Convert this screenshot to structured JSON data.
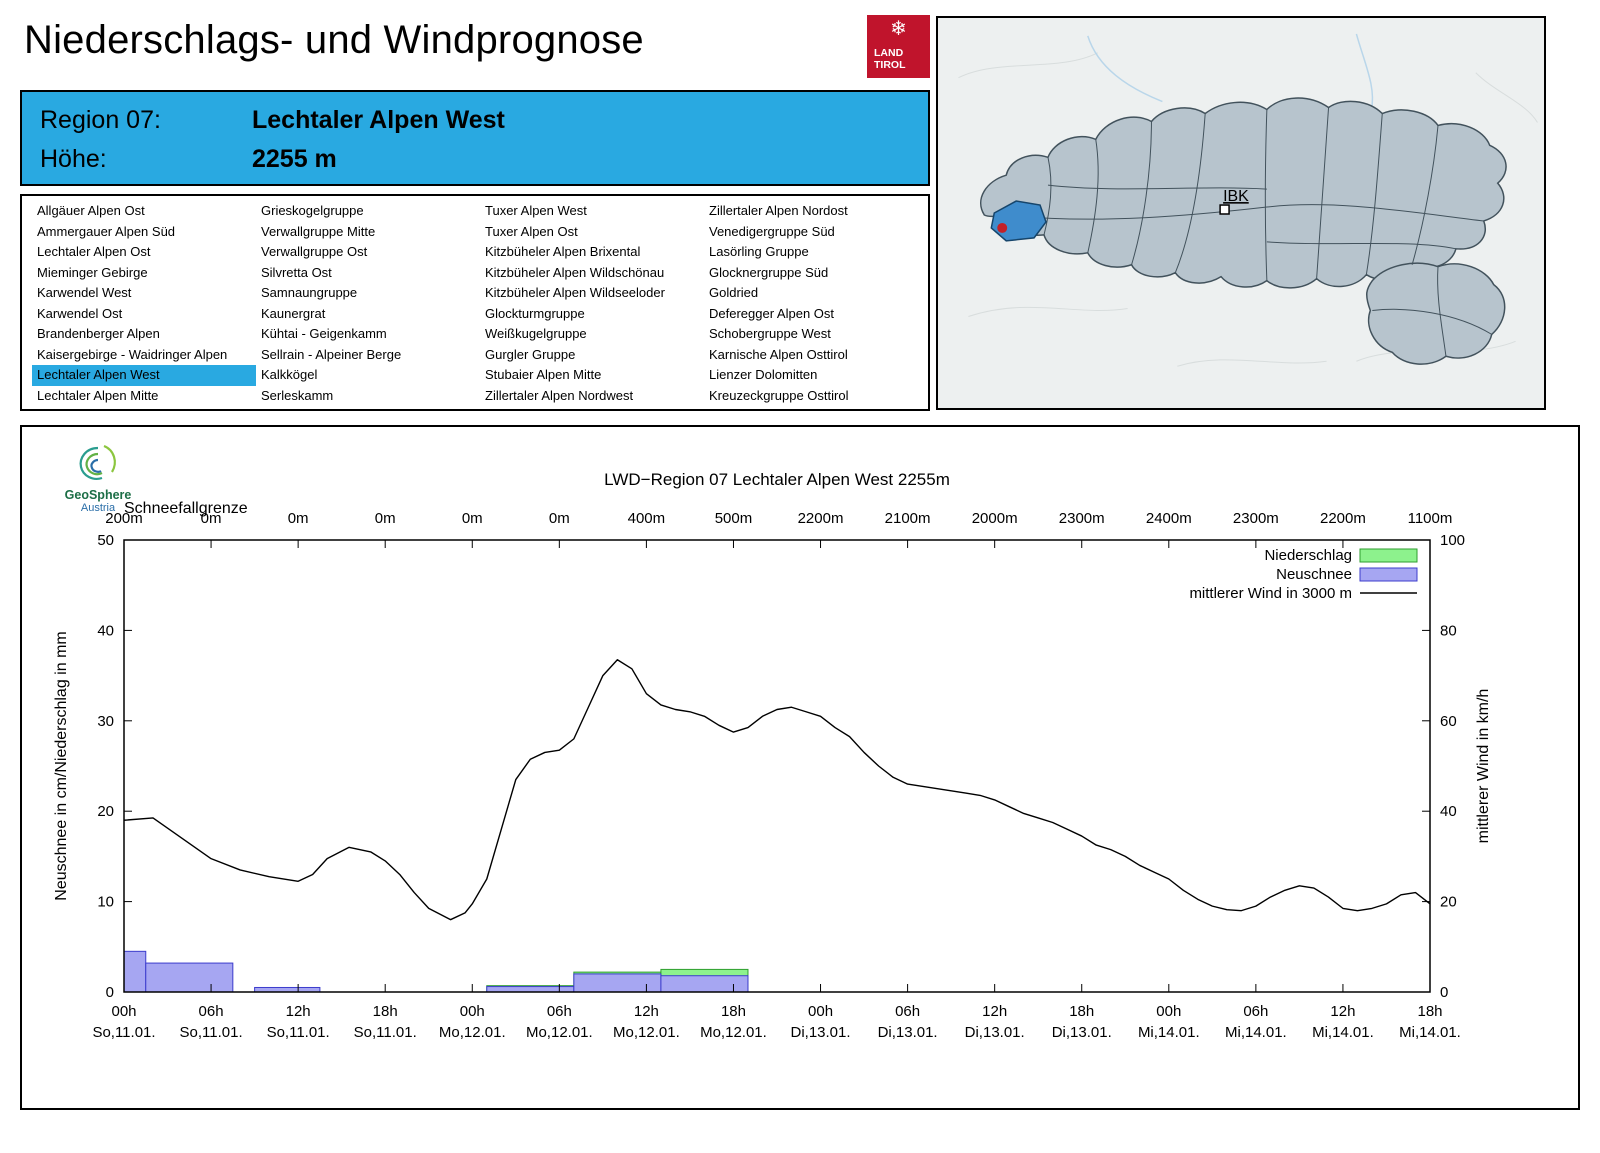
{
  "page": {
    "title": "Niederschlags- und Windprognose"
  },
  "logo": {
    "line1": "LAND",
    "line2": "TIROL",
    "icon": "snowflake"
  },
  "info_box": {
    "region_label": "Region 07:",
    "region_value": "Lechtaler Alpen West",
    "altitude_label": "Höhe:",
    "altitude_value": "2255 m"
  },
  "region_list": {
    "selected": "Lechtaler Alpen West",
    "columns": [
      [
        "Allgäuer Alpen Ost",
        "Ammergauer Alpen Süd",
        "Lechtaler Alpen Ost",
        "Mieminger Gebirge",
        "Karwendel West",
        "Karwendel Ost",
        "Brandenberger Alpen",
        "Kaisergebirge - Waidringer Alpen",
        "Lechtaler Alpen West",
        "Lechtaler Alpen Mitte"
      ],
      [
        "Grieskogelgruppe",
        "Verwallgruppe Mitte",
        "Verwallgruppe Ost",
        "Silvretta Ost",
        "Samnaungruppe",
        "Kaunergrat",
        "Kühtai - Geigenkamm",
        "Sellrain - Alpeiner Berge",
        "Kalkkögel",
        "Serleskamm"
      ],
      [
        "Tuxer Alpen West",
        "Tuxer Alpen Ost",
        "Kitzbüheler Alpen Brixental",
        "Kitzbüheler Alpen Wildschönau",
        "Kitzbüheler Alpen Wildseeloder",
        "Glockturmgruppe",
        "Weißkugelgruppe",
        "Gurgler Gruppe",
        "Stubaier Alpen Mitte",
        "Zillertaler Alpen Nordwest"
      ],
      [
        "Zillertaler Alpen Nordost",
        "Venedigergruppe Süd",
        "Lasörling Gruppe",
        "Glocknergruppe Süd",
        "Goldried",
        "Deferegger Alpen Ost",
        "Schobergruppe West",
        "Karnische Alpen Osttirol",
        "Lienzer Dolomitten",
        "Kreuzeckgruppe Osttirol"
      ]
    ]
  },
  "map": {
    "city_label": "IBK",
    "highlight_color": "#3f8ccc",
    "region_fill": "#b7c4cd",
    "marker_color": "#c32027"
  },
  "geosphere": {
    "name": "GeoSphere",
    "sub": "Austria"
  },
  "chart_data": {
    "type": "line+bar",
    "title": "LWD−Region 07 Lechtaler Alpen West 2255m",
    "top_axis_label": "Schneefallgrenze",
    "top_axis_values": [
      "200m",
      "0m",
      "0m",
      "0m",
      "0m",
      "0m",
      "400m",
      "500m",
      "2200m",
      "2100m",
      "2000m",
      "2300m",
      "2400m",
      "2300m",
      "2200m",
      "1100m"
    ],
    "ylabel_left": "Neuschnee in cm/Niederschlag in mm",
    "ylabel_right": "mittlerer Wind in km/h",
    "ylim_left": [
      0,
      50
    ],
    "ylim_right": [
      0,
      100
    ],
    "x_hours_range": [
      0,
      90
    ],
    "x_ticks": [
      {
        "hour": "00h",
        "date": "So,11.01."
      },
      {
        "hour": "06h",
        "date": "So,11.01."
      },
      {
        "hour": "12h",
        "date": "So,11.01."
      },
      {
        "hour": "18h",
        "date": "So,11.01."
      },
      {
        "hour": "00h",
        "date": "Mo,12.01."
      },
      {
        "hour": "06h",
        "date": "Mo,12.01."
      },
      {
        "hour": "12h",
        "date": "Mo,12.01."
      },
      {
        "hour": "18h",
        "date": "Mo,12.01."
      },
      {
        "hour": "00h",
        "date": "Di,13.01."
      },
      {
        "hour": "06h",
        "date": "Di,13.01."
      },
      {
        "hour": "12h",
        "date": "Di,13.01."
      },
      {
        "hour": "18h",
        "date": "Di,13.01."
      },
      {
        "hour": "00h",
        "date": "Mi,14.01."
      },
      {
        "hour": "06h",
        "date": "Mi,14.01."
      },
      {
        "hour": "12h",
        "date": "Mi,14.01."
      },
      {
        "hour": "18h",
        "date": "Mi,14.01."
      }
    ],
    "legend": [
      {
        "label": "Niederschlag",
        "type": "box",
        "fill": "#8df28d",
        "stroke": "#2e9e2e"
      },
      {
        "label": "Neuschnee",
        "type": "box",
        "fill": "#a6a6f2",
        "stroke": "#3c3ccc"
      },
      {
        "label": "mittlerer Wind in 3000 m",
        "type": "line",
        "stroke": "#000000"
      }
    ],
    "colors": {
      "niederschlag_fill": "#8df28d",
      "niederschlag_stroke": "#2e9e2e",
      "neuschnee_fill": "#a6a6f2",
      "neuschnee_stroke": "#3c3ccc",
      "wind": "#000000"
    },
    "niederschlag_bars": [
      {
        "start": 25,
        "end": 31,
        "value": 0.7
      },
      {
        "start": 31,
        "end": 37,
        "value": 2.2
      },
      {
        "start": 37,
        "end": 43,
        "value": 2.5
      }
    ],
    "neuschnee_bars": [
      {
        "start": 0,
        "end": 1.5,
        "value": 4.5
      },
      {
        "start": 1.5,
        "end": 7.5,
        "value": 3.2
      },
      {
        "start": 9,
        "end": 13.5,
        "value": 0.5
      },
      {
        "start": 25,
        "end": 31,
        "value": 0.6
      },
      {
        "start": 31,
        "end": 37,
        "value": 2.0
      },
      {
        "start": 37,
        "end": 43,
        "value": 1.8
      }
    ],
    "wind_series": {
      "name": "mittlerer Wind in 3000 m",
      "unit": "km/h",
      "points": [
        [
          0,
          38
        ],
        [
          2,
          38.5
        ],
        [
          4,
          34
        ],
        [
          6,
          29.5
        ],
        [
          8,
          27
        ],
        [
          10,
          25.5
        ],
        [
          12,
          24.5
        ],
        [
          13,
          26
        ],
        [
          14,
          29.5
        ],
        [
          15.5,
          32
        ],
        [
          17,
          31
        ],
        [
          18,
          29
        ],
        [
          19,
          26
        ],
        [
          20,
          22
        ],
        [
          21,
          18.5
        ],
        [
          22.5,
          16
        ],
        [
          23.5,
          17.5
        ],
        [
          24,
          19.5
        ],
        [
          25,
          25
        ],
        [
          26,
          36
        ],
        [
          27,
          47
        ],
        [
          28,
          51.5
        ],
        [
          29,
          53
        ],
        [
          30,
          53.5
        ],
        [
          31,
          56
        ],
        [
          32,
          63
        ],
        [
          33,
          70
        ],
        [
          34,
          73.5
        ],
        [
          35,
          71.5
        ],
        [
          36,
          66
        ],
        [
          37,
          63.5
        ],
        [
          38,
          62.5
        ],
        [
          39,
          62
        ],
        [
          40,
          61
        ],
        [
          41,
          59
        ],
        [
          42,
          57.5
        ],
        [
          43,
          58.5
        ],
        [
          44,
          61
        ],
        [
          45,
          62.5
        ],
        [
          46,
          63
        ],
        [
          47,
          62
        ],
        [
          48,
          61
        ],
        [
          49,
          58.5
        ],
        [
          50,
          56.5
        ],
        [
          51,
          53
        ],
        [
          52,
          50
        ],
        [
          53,
          47.5
        ],
        [
          54,
          46
        ],
        [
          55,
          45.5
        ],
        [
          56,
          45
        ],
        [
          57,
          44.5
        ],
        [
          58,
          44
        ],
        [
          59,
          43.5
        ],
        [
          60,
          42.5
        ],
        [
          61,
          41
        ],
        [
          62,
          39.5
        ],
        [
          63,
          38.5
        ],
        [
          64,
          37.5
        ],
        [
          65,
          36
        ],
        [
          66,
          34.5
        ],
        [
          67,
          32.5
        ],
        [
          68,
          31.5
        ],
        [
          69,
          30
        ],
        [
          70,
          28
        ],
        [
          71,
          26.5
        ],
        [
          72,
          25
        ],
        [
          73,
          22.5
        ],
        [
          74,
          20.5
        ],
        [
          75,
          19
        ],
        [
          76,
          18.2
        ],
        [
          77,
          18
        ],
        [
          78,
          19
        ],
        [
          79,
          21
        ],
        [
          80,
          22.5
        ],
        [
          81,
          23.5
        ],
        [
          82,
          23
        ],
        [
          83,
          21
        ],
        [
          84,
          18.5
        ],
        [
          85,
          18
        ],
        [
          86,
          18.5
        ],
        [
          87,
          19.5
        ],
        [
          88,
          21.5
        ],
        [
          89,
          22
        ],
        [
          90,
          19.5
        ]
      ]
    }
  }
}
